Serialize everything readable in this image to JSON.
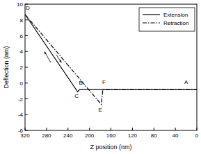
{
  "chart_data": {
    "type": "line",
    "x_label": "Z position (nm)",
    "y_label": "Deflection (nm)",
    "xlim": [
      320,
      0
    ],
    "xticks": [
      320,
      280,
      240,
      200,
      160,
      120,
      80,
      40,
      0
    ],
    "ylim": [
      -6,
      10
    ],
    "yticks": [
      -6,
      -4,
      -2,
      0,
      2,
      4,
      6,
      8,
      10
    ],
    "legend": "upper right",
    "grid": false,
    "series": [
      {
        "name": "Extension",
        "color": "#000000",
        "line_style": "solid",
        "x": [
          0,
          218,
          222,
          320
        ],
        "values": [
          -0.8,
          -0.8,
          -1.1,
          8.7
        ]
      },
      {
        "name": "Retraction",
        "color": "#000000",
        "line_style": "dashdot",
        "x": [
          320,
          178,
          175,
          0
        ],
        "values": [
          8.7,
          -2.7,
          -0.8,
          -0.8
        ]
      }
    ],
    "annotations": [
      {
        "text": "A",
        "x": 20,
        "y": -0.1
      },
      {
        "text": "B",
        "x": 216,
        "y": -0.2
      },
      {
        "text": "C",
        "x": 224,
        "y": -1.9
      },
      {
        "text": "D",
        "x": 315,
        "y": 9.3
      },
      {
        "text": "E",
        "x": 180,
        "y": -3.6
      },
      {
        "text": "F",
        "x": 173,
        "y": -0.1
      }
    ]
  }
}
